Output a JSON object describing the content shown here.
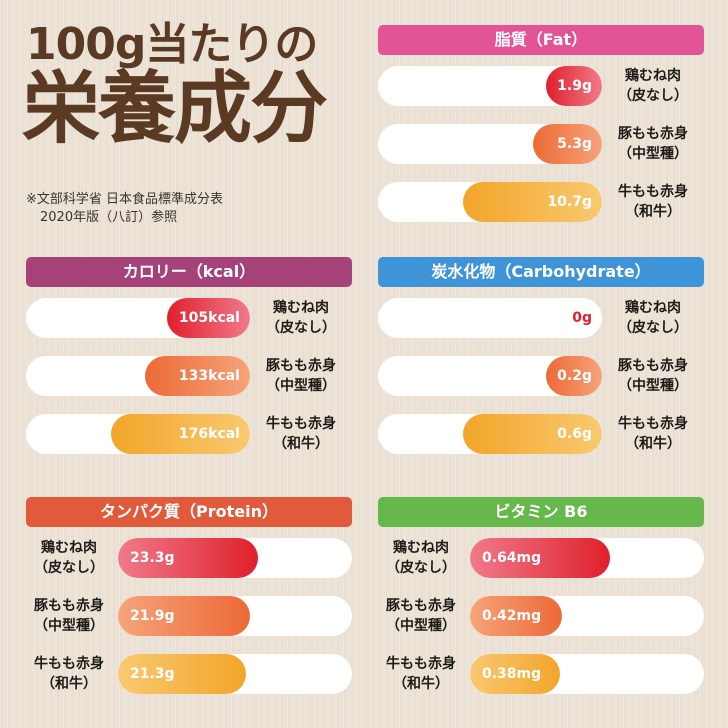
{
  "title_line1": "100g当たりの",
  "title_line2": "栄養成分",
  "source_line1": "※文部科学省 日本食品標準成分表",
  "source_line2": "2020年版（八訂）参照",
  "colors": {
    "title": "#5a3a22",
    "fat_header": "#e25496",
    "kcal_header": "#a6427a",
    "carb_header": "#3f94d8",
    "protein_header": "#e25a3c",
    "b6_header": "#66b84a",
    "chicken_fill": "#e0202c",
    "pork_fill": "#ec6a36",
    "beef_fill": "#f3a52a"
  },
  "chart_data": [
    {
      "type": "bar",
      "title": "脂質（Fat）",
      "categories": [
        [
          "鶏むね肉",
          "（皮なし）"
        ],
        [
          "豚もも赤身",
          "（中型種）"
        ],
        [
          "牛もも赤身",
          "（和牛）"
        ]
      ],
      "values": [
        1.9,
        5.3,
        10.7
      ],
      "value_labels": [
        "1.9g",
        "5.3g",
        "10.7g"
      ],
      "unit": "g"
    },
    {
      "type": "bar",
      "title": "カロリー（kcal）",
      "categories": [
        [
          "鶏むね肉",
          "（皮なし）"
        ],
        [
          "豚もも赤身",
          "（中型種）"
        ],
        [
          "牛もも赤身",
          "（和牛）"
        ]
      ],
      "values": [
        105,
        133,
        176
      ],
      "value_labels": [
        "105kcal",
        "133kcal",
        "176kcal"
      ],
      "unit": "kcal"
    },
    {
      "type": "bar",
      "title": "炭水化物（Carbohydrate）",
      "categories": [
        [
          "鶏むね肉",
          "（皮なし）"
        ],
        [
          "豚もも赤身",
          "（中型種）"
        ],
        [
          "牛もも赤身",
          "（和牛）"
        ]
      ],
      "values": [
        0,
        0.2,
        0.6
      ],
      "value_labels": [
        "0g",
        "0.2g",
        "0.6g"
      ],
      "unit": "g"
    },
    {
      "type": "bar",
      "title": "タンパク質（Protein）",
      "categories": [
        [
          "鶏むね肉",
          "（皮なし）"
        ],
        [
          "豚もも赤身",
          "（中型種）"
        ],
        [
          "牛もも赤身",
          "（和牛）"
        ]
      ],
      "values": [
        23.3,
        21.9,
        21.3
      ],
      "value_labels": [
        "23.3g",
        "21.9g",
        "21.3g"
      ],
      "unit": "g"
    },
    {
      "type": "bar",
      "title": "ビタミン B6",
      "categories": [
        [
          "鶏むね肉",
          "（皮なし）"
        ],
        [
          "豚もも赤身",
          "（中型種）"
        ],
        [
          "牛もも赤身",
          "（和牛）"
        ]
      ],
      "values": [
        0.64,
        0.42,
        0.38
      ],
      "value_labels": [
        "0.64mg",
        "0.42mg",
        "0.38mg"
      ],
      "unit": "mg"
    }
  ]
}
